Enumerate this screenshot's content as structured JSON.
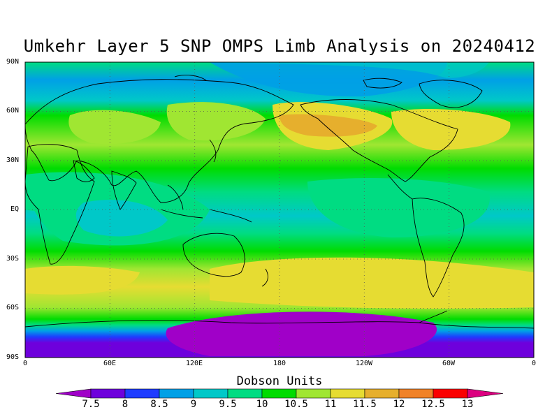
{
  "title": "Umkehr Layer 5 SNP OMPS Limb Analysis on 20240412",
  "map": {
    "projection": "cylindrical-equidistant",
    "lat_labels": [
      "90N",
      "60N",
      "30N",
      "EQ",
      "30S",
      "60S",
      "90S"
    ],
    "lon_labels": [
      "0",
      "60E",
      "120E",
      "180",
      "120W",
      "60W",
      "0"
    ],
    "grid": "dotted"
  },
  "colorbar": {
    "title": "Dobson Units",
    "labels": [
      "7.5",
      "8",
      "8.5",
      "9",
      "9.5",
      "10",
      "10.5",
      "11",
      "11.5",
      "12",
      "12.5",
      "13"
    ],
    "colors": [
      "#a000c8",
      "#6e00dc",
      "#1e3cff",
      "#00a0e6",
      "#00c8c8",
      "#00dc82",
      "#00dc00",
      "#a0e632",
      "#e6dc32",
      "#e6af2d",
      "#f08228",
      "#fa0000",
      "#dc0080"
    ]
  }
}
